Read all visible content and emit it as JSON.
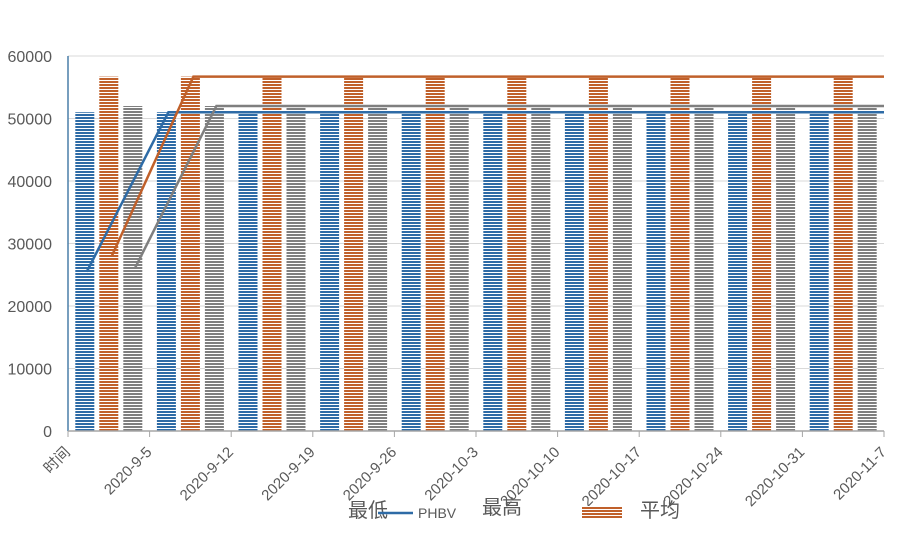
{
  "chart_data": {
    "type": "bar",
    "title": "",
    "xlabel": "",
    "ylabel": "",
    "ylim": [
      0,
      60000
    ],
    "yticks": [
      "0",
      "10000",
      "20000",
      "30000",
      "40000",
      "50000",
      "60000"
    ],
    "categories": [
      "时间",
      "2020-9-5",
      "2020-9-12",
      "2020-9-19",
      "2020-9-26",
      "2020-10-3",
      "2020-10-10",
      "2020-10-17",
      "2020-10-24",
      "2020-10-31",
      "2020-11-7"
    ],
    "series": [
      {
        "name": "最低",
        "color": "#2e6ba6",
        "values": [
          null,
          51000,
          51000,
          51000,
          51000,
          51000,
          51000,
          51000,
          51000,
          51000,
          51000
        ]
      },
      {
        "name": "最高",
        "color": "#c0602a",
        "values": [
          null,
          56700,
          56700,
          56700,
          56700,
          56700,
          56700,
          56700,
          56700,
          56700,
          56700
        ]
      },
      {
        "name": "平均",
        "color": "#7f7f7f",
        "values": [
          null,
          52000,
          52000,
          52000,
          52000,
          52000,
          52000,
          52000,
          52000,
          52000,
          52000
        ]
      }
    ],
    "line_series": [
      {
        "name": "最低",
        "color": "#2e6ba6",
        "values": [
          null,
          25500,
          51000,
          51000,
          51000,
          51000,
          51000,
          51000,
          51000,
          51000,
          51000
        ]
      },
      {
        "name": "最高",
        "color": "#c0602a",
        "values": [
          null,
          28000,
          56700,
          56700,
          56700,
          56700,
          56700,
          56700,
          56700,
          56700,
          56700
        ]
      },
      {
        "name": "平均",
        "color": "#7f7f7f",
        "values": [
          null,
          26000,
          52000,
          52000,
          52000,
          52000,
          52000,
          52000,
          52000,
          52000,
          52000
        ]
      }
    ],
    "grid": true,
    "legend": {
      "position": "bottom",
      "entries": [
        {
          "label": "最低",
          "color": "#2e6ba6"
        },
        {
          "label": "PHBV",
          "color": "#2e6ba6"
        },
        {
          "label": "最高",
          "color": "#c0602a"
        },
        {
          "label": "平均",
          "color": "#c0602a"
        }
      ]
    }
  }
}
